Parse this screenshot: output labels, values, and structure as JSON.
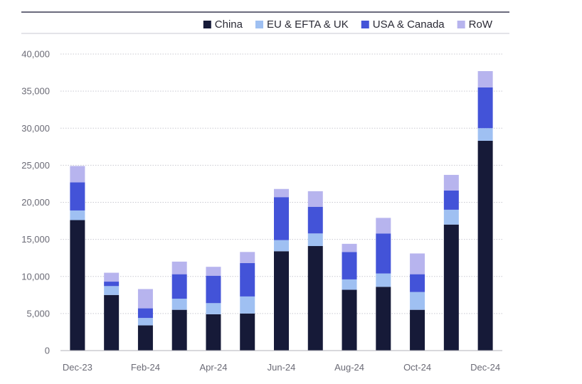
{
  "chart_data": {
    "type": "bar",
    "stacked": true,
    "title": "",
    "xlabel": "",
    "ylabel": "",
    "ylim": [
      0,
      40000
    ],
    "yticks": [
      0,
      5000,
      10000,
      15000,
      20000,
      25000,
      30000,
      35000,
      40000
    ],
    "ytick_labels": [
      "0",
      "5,000",
      "10,000",
      "15,000",
      "20,000",
      "25,000",
      "30,000",
      "35,000",
      "40,000"
    ],
    "categories": [
      "Dec-23",
      "Jan-24",
      "Feb-24",
      "Mar-24",
      "Apr-24",
      "May-24",
      "Jun-24",
      "Jul-24",
      "Aug-24",
      "Sep-24",
      "Oct-24",
      "Nov-24",
      "Dec-24"
    ],
    "xtick_labels": [
      "Dec-23",
      "",
      "Feb-24",
      "",
      "Apr-24",
      "",
      "Jun-24",
      "",
      "Aug-24",
      "",
      "Oct-24",
      "",
      "Dec-24"
    ],
    "grid": true,
    "legend_position": "top",
    "series": [
      {
        "name": "China",
        "color": "#161a38",
        "values": [
          17600,
          7500,
          3400,
          5500,
          4900,
          5000,
          13400,
          14100,
          8200,
          8600,
          5500,
          17000,
          28300
        ]
      },
      {
        "name": "EU & EFTA & UK",
        "color": "#9fc0f2",
        "values": [
          1300,
          1200,
          1000,
          1500,
          1500,
          2300,
          1500,
          1700,
          1400,
          1800,
          2400,
          2000,
          1700
        ]
      },
      {
        "name": "USA & Canada",
        "color": "#4353d8",
        "values": [
          3800,
          600,
          1300,
          3300,
          3700,
          4500,
          5800,
          3600,
          3700,
          5400,
          2400,
          2600,
          5500
        ]
      },
      {
        "name": "RoW",
        "color": "#b7b4ee",
        "values": [
          2200,
          1200,
          2600,
          1700,
          1200,
          1500,
          1100,
          2100,
          1100,
          2100,
          2800,
          2100,
          2200
        ]
      }
    ]
  }
}
